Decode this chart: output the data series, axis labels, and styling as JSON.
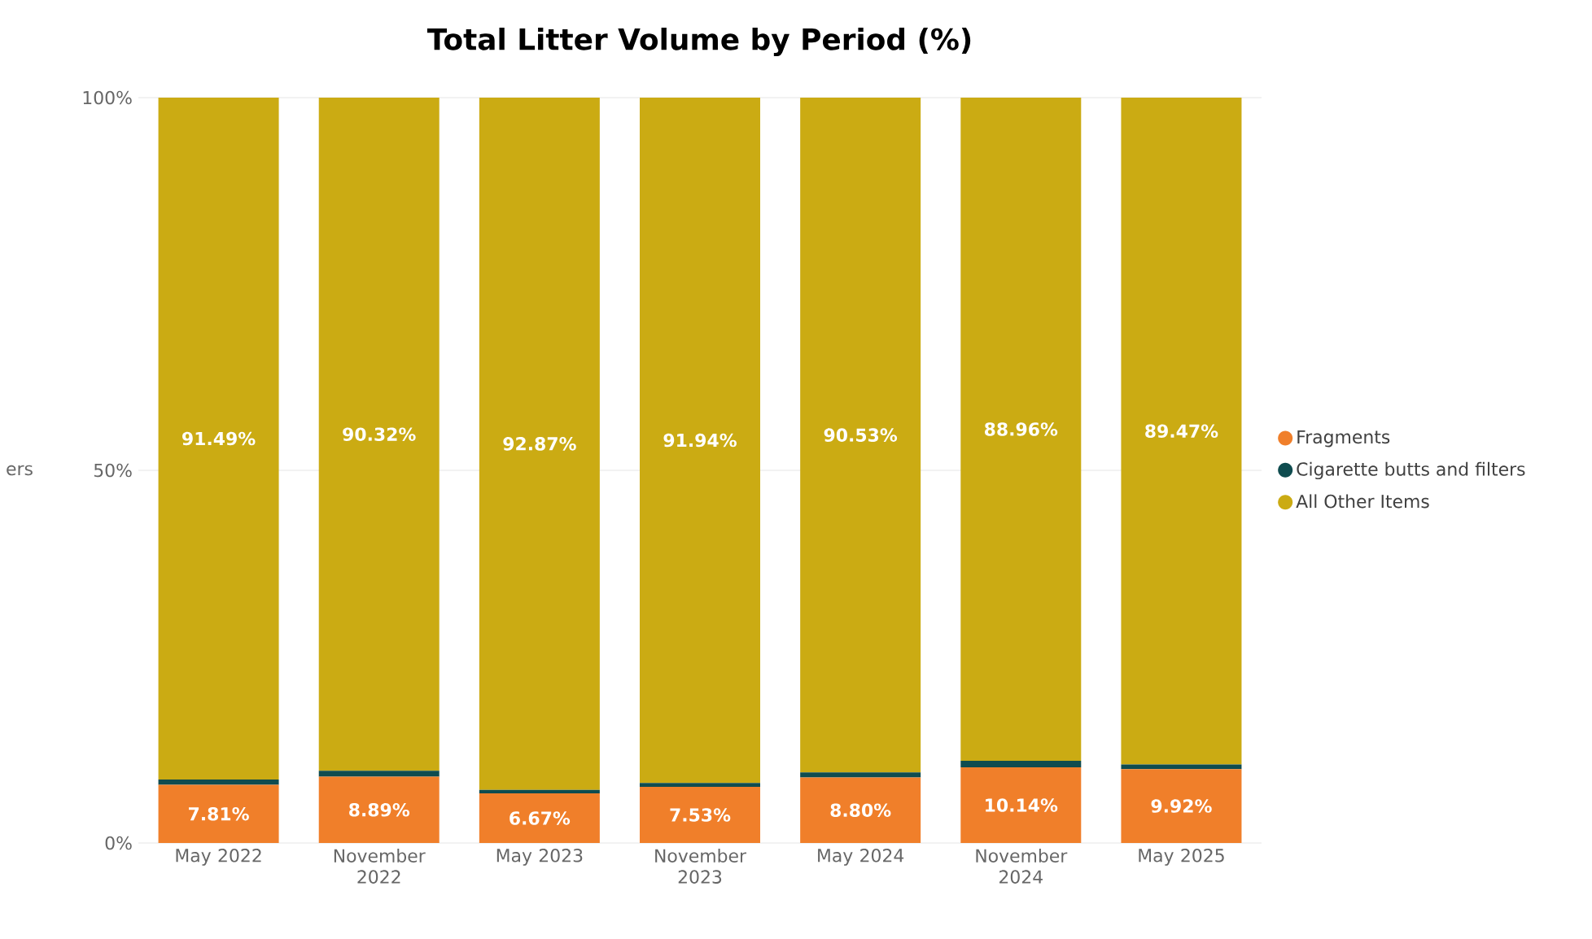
{
  "chart_data": {
    "type": "bar",
    "stacked": true,
    "title": "Total Litter Volume by Period (%)",
    "ylabel": "ers",
    "categories": [
      "May 2022",
      "November 2022",
      "May 2023",
      "November 2023",
      "May 2024",
      "November 2024",
      "May 2025"
    ],
    "series": [
      {
        "name": "Fragments",
        "color": "#f07f2a",
        "values": [
          7.81,
          8.89,
          6.67,
          7.53,
          8.8,
          10.14,
          9.92
        ],
        "value_labels": [
          "7.81%",
          "8.89%",
          "6.67%",
          "7.53%",
          "8.80%",
          "10.14%",
          "9.92%"
        ]
      },
      {
        "name": "Cigarette butts and filters",
        "color": "#0f4c4f",
        "values": [
          0.7,
          0.79,
          0.46,
          0.53,
          0.67,
          0.9,
          0.61
        ]
      },
      {
        "name": "All Other Items",
        "color": "#cbab13",
        "values": [
          91.49,
          90.32,
          92.87,
          91.94,
          90.53,
          88.96,
          89.47
        ],
        "value_labels": [
          "91.49%",
          "90.32%",
          "92.87%",
          "91.94%",
          "90.53%",
          "88.96%",
          "89.47%"
        ]
      }
    ],
    "ylim": [
      0,
      100
    ],
    "yticks": [
      {
        "value": 0,
        "label": "0%"
      },
      {
        "value": 50,
        "label": "50%"
      },
      {
        "value": 100,
        "label": "100%"
      }
    ],
    "grid": "y",
    "legend": "right"
  }
}
